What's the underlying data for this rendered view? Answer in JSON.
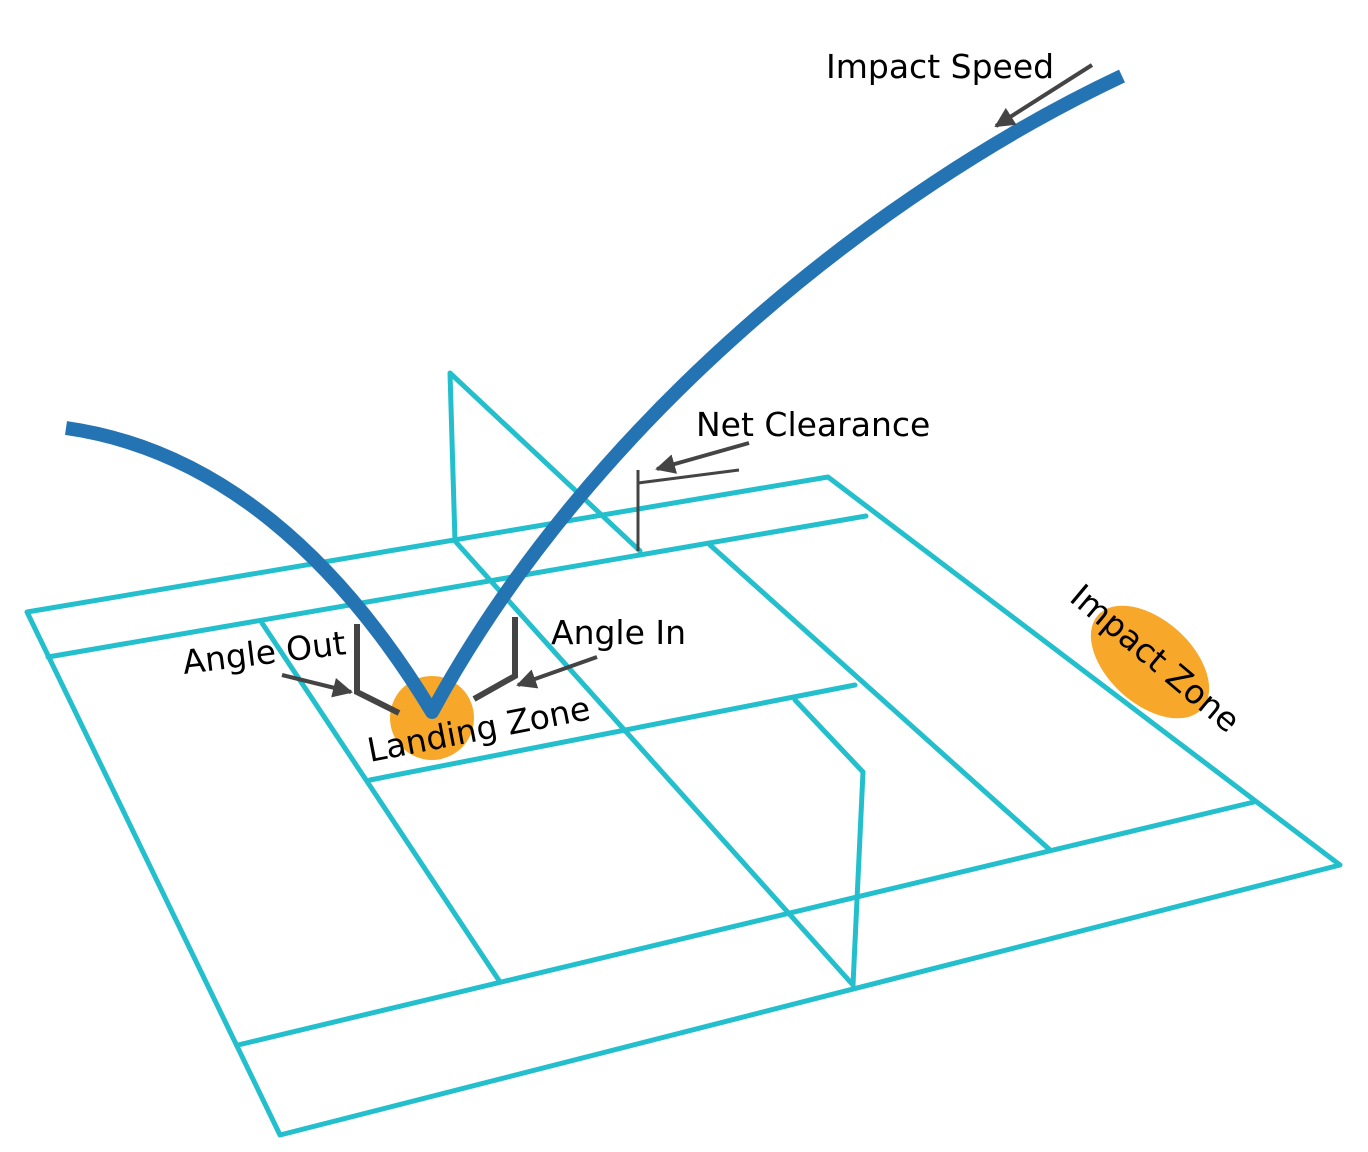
{
  "colors": {
    "court_lines": "#24bfcd",
    "trajectory": "#2474b4",
    "zones": "#f7a82a",
    "annotations": "#444444",
    "text": "#000000"
  },
  "labels": {
    "impact_speed": "Impact Speed",
    "net_clearance": "Net Clearance",
    "angle_in": "Angle In",
    "angle_out": "Angle Out",
    "landing_zone": "Landing Zone",
    "impact_zone": "Impact Zone"
  }
}
